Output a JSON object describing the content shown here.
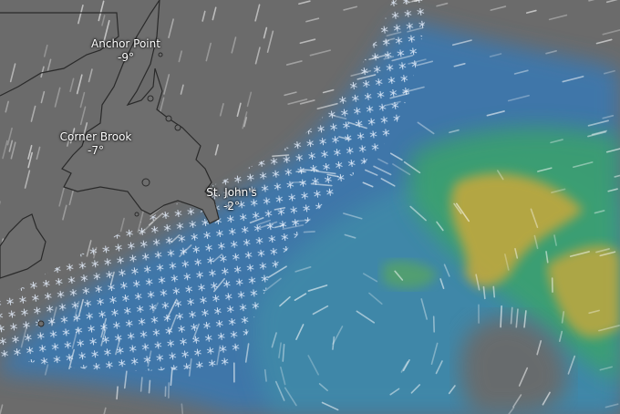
{
  "map": {
    "layer": "precipitation-and-wind",
    "colors": {
      "background": "#6b6b6b",
      "light_precip": "#3a78b0",
      "moderate_precip": "#3aa36a",
      "heavy_precip": "#c9a83a",
      "snow_symbol": "#e6f0ff",
      "coastline": "#2a2a2a"
    },
    "cities": [
      {
        "name": "Anchor Point",
        "temp": "-9°"
      },
      {
        "name": "Corner Brook",
        "temp": "-7°"
      },
      {
        "name": "St. John's",
        "temp": "-2°"
      }
    ]
  }
}
